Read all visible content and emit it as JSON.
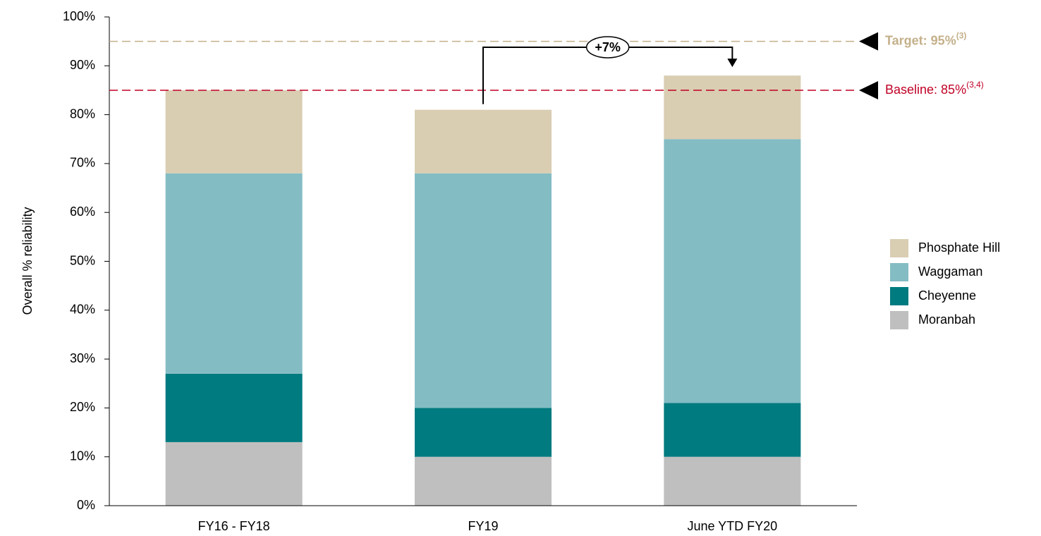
{
  "chart_data": {
    "type": "stacked_bar",
    "y_label": "Overall % reliability",
    "categories": [
      "FY16 - FY18",
      "FY19",
      "June YTD FY20"
    ],
    "series": [
      {
        "name": "Moranbah",
        "color": "#bfbfbf",
        "values": [
          13,
          10,
          10
        ]
      },
      {
        "name": "Cheyenne",
        "color": "#007b80",
        "values": [
          14,
          10,
          11
        ]
      },
      {
        "name": "Waggaman",
        "color": "#84bcc4",
        "values": [
          41,
          48,
          54
        ]
      },
      {
        "name": "Phosphate Hill",
        "color": "#d9cdb2",
        "values": [
          17,
          13,
          13
        ]
      }
    ],
    "ylim": [
      0,
      100
    ],
    "yticks": [
      {
        "value": 0,
        "label": "0%"
      },
      {
        "value": 10,
        "label": "10%"
      },
      {
        "value": 20,
        "label": "20%"
      },
      {
        "value": 30,
        "label": "30%"
      },
      {
        "value": 40,
        "label": "40%"
      },
      {
        "value": 50,
        "label": "50%"
      },
      {
        "value": 60,
        "label": "60%"
      },
      {
        "value": 70,
        "label": "70%"
      },
      {
        "value": 80,
        "label": "80%"
      },
      {
        "value": 90,
        "label": "90%"
      },
      {
        "value": 100,
        "label": "100%"
      }
    ],
    "reference_lines": [
      {
        "value": 95,
        "label": "Target: 95%",
        "note": "(3)",
        "color": "#c4b08a",
        "bold": true
      },
      {
        "value": 85,
        "label": "Baseline: 85%",
        "note": "(3,4)",
        "color": "#c00026",
        "bold": false
      }
    ],
    "annotations": [
      {
        "text": "+7%"
      }
    ],
    "legend": "right"
  }
}
